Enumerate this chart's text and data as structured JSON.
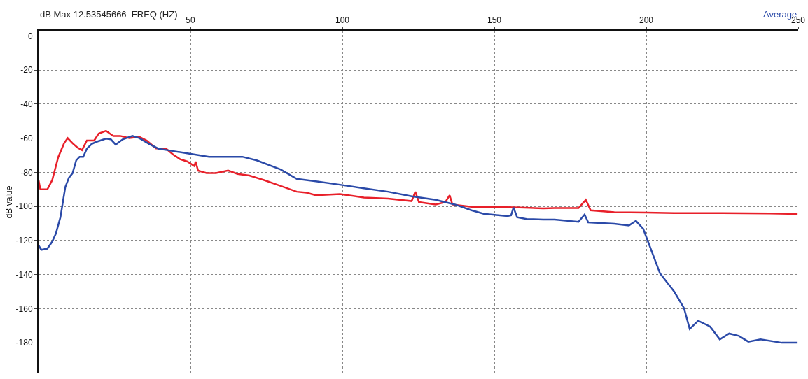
{
  "chart_data": {
    "type": "line",
    "ylabel": "dB value",
    "annotations": [
      "dB Max 12.53545666  FREQ (HZ)",
      "Average"
    ],
    "xlim": [
      0,
      250
    ],
    "xticks": [
      50,
      100,
      150,
      200,
      250
    ],
    "ylim": [
      -198,
      3
    ],
    "yticks": [
      0,
      -20,
      -40,
      -60,
      -80,
      -100,
      -120,
      -140,
      -160,
      -180
    ],
    "grid": true,
    "marker": "none",
    "line_style": "solid",
    "series": [
      {
        "color": "#e8202a",
        "x": [
          0,
          0.6,
          2.9,
          4.5,
          6.5,
          8.4,
          9.6,
          11.2,
          12.8,
          14.3,
          15.9,
          18.3,
          19.8,
          22.2,
          24.6,
          26.9,
          29.9,
          33.2,
          35.6,
          38.7,
          41.9,
          44.3,
          46.6,
          49,
          51.3,
          51.7,
          52.5,
          55.3,
          58.4,
          62.4,
          65.5,
          69.4,
          74.2,
          79.7,
          85,
          88.2,
          91.3,
          99.2,
          107.1,
          115,
          122.8,
          124,
          125.2,
          130.7,
          133.9,
          135.3,
          136.2,
          142.5,
          150.4,
          158.3,
          166.1,
          169.8,
          177.7,
          180.1,
          181.7,
          189.5,
          200,
          209.2,
          225,
          240.7,
          249.8
        ],
        "values": [
          -84.6,
          -90,
          -90,
          -84.6,
          -71,
          -63,
          -60,
          -63,
          -65.5,
          -67,
          -61.4,
          -61.4,
          -57.3,
          -55.7,
          -58.7,
          -58.7,
          -60,
          -59.3,
          -61.4,
          -66,
          -66,
          -69.6,
          -72.3,
          -73.7,
          -76.4,
          -73.7,
          -79,
          -80.5,
          -80.5,
          -79,
          -81,
          -81.9,
          -84.6,
          -88,
          -91.4,
          -92,
          -93.5,
          -92.8,
          -94.8,
          -95.5,
          -96.9,
          -91.4,
          -97.5,
          -98.9,
          -97.5,
          -93.5,
          -98.9,
          -100.3,
          -100.3,
          -100.7,
          -101.2,
          -101,
          -101,
          -96.2,
          -102.3,
          -103.4,
          -103.7,
          -104,
          -104,
          -104.2,
          -104.5
        ]
      },
      {
        "color": "#2b4aa8",
        "x": [
          0,
          0.9,
          2.9,
          4.5,
          5.7,
          7.2,
          8.8,
          10,
          11.2,
          12.4,
          13.5,
          14.7,
          15.9,
          17.5,
          19.1,
          22.2,
          23.8,
          25.4,
          27.7,
          30.9,
          33.2,
          36.4,
          39.5,
          42.7,
          49,
          56.1,
          67.1,
          71.8,
          79.7,
          85,
          91.3,
          99.2,
          107.1,
          115,
          122.8,
          130.7,
          137,
          142.5,
          146.5,
          154.3,
          155.5,
          156.3,
          157.5,
          160.6,
          166.1,
          169.8,
          177.7,
          179.7,
          180.9,
          189.5,
          194.3,
          196.6,
          199,
          204.5,
          209.2,
          212.4,
          214.3,
          217.1,
          221,
          224.2,
          227.3,
          230.5,
          233.6,
          237.6,
          244.6,
          249.8
        ],
        "values": [
          -122.8,
          -125.5,
          -124.8,
          -120.7,
          -116,
          -106.4,
          -88.7,
          -83.2,
          -80.5,
          -73,
          -70.9,
          -70.9,
          -66.2,
          -63.4,
          -62.1,
          -60.3,
          -60.7,
          -63.8,
          -60.7,
          -58.7,
          -60,
          -63.4,
          -66.2,
          -67.1,
          -68.9,
          -70.9,
          -70.9,
          -73,
          -78.4,
          -83.9,
          -85.3,
          -87.3,
          -89.4,
          -91.4,
          -94.1,
          -96.2,
          -98.9,
          -102.3,
          -104.4,
          -105.7,
          -105.3,
          -100.7,
          -106.4,
          -107.4,
          -107.8,
          -107.8,
          -109.1,
          -104.8,
          -109.4,
          -110.2,
          -111.2,
          -108.5,
          -113.2,
          -139.2,
          -150,
          -159.6,
          -171.9,
          -167.1,
          -170.5,
          -178,
          -174.6,
          -176,
          -179.4,
          -178,
          -180,
          -180
        ]
      }
    ]
  }
}
